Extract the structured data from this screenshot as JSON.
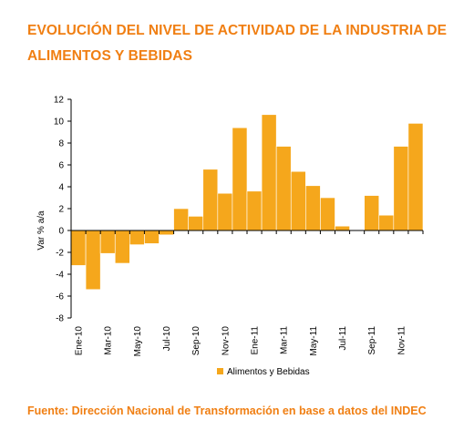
{
  "header": {
    "title": "EVOLUCIÓN DEL NIVEL DE ACTIVIDAD DE LA INDUSTRIA DE ALIMENTOS Y BEBIDAS"
  },
  "footer": {
    "source": "Fuente: Dirección Nacional de Transformación en base a datos del INDEC"
  },
  "colors": {
    "bar": "#f5a71c",
    "title": "#f07f13",
    "axis": "#000000"
  },
  "chart_data": {
    "type": "bar",
    "title": "EVOLUCIÓN DEL NIVEL DE ACTIVIDAD DE LA INDUSTRIA DE ALIMENTOS Y BEBIDAS",
    "xlabel": "",
    "ylabel": "Var % a/a",
    "ylim": [
      -8,
      12
    ],
    "yticks": [
      -8,
      -6,
      -4,
      -2,
      0,
      2,
      4,
      6,
      8,
      10,
      12
    ],
    "grid": false,
    "legend": "bottom",
    "categories": [
      "Ene-10",
      "Feb-10",
      "Mar-10",
      "Abr-10",
      "May-10",
      "Jun-10",
      "Jul-10",
      "Ago-10",
      "Sep-10",
      "Oct-10",
      "Nov-10",
      "Dic-10",
      "Ene-11",
      "Feb-11",
      "Mar-11",
      "Abr-11",
      "May-11",
      "Jun-11",
      "Jul-11",
      "Ago-11",
      "Sep-11",
      "Oct-11",
      "Nov-11",
      "Dic-11"
    ],
    "tick_labels": [
      "Ene-10",
      "Mar-10",
      "May-10",
      "Jul-10",
      "Sep-10",
      "Nov-10",
      "Ene-11",
      "Mar-11",
      "May-11",
      "Jul-11",
      "Sep-11",
      "Nov-11"
    ],
    "series": [
      {
        "name": "Alimentos y Bebidas",
        "values": [
          -3.2,
          -5.4,
          -2.1,
          -3.0,
          -1.3,
          -1.2,
          -0.4,
          2.0,
          1.3,
          5.6,
          3.4,
          9.4,
          3.6,
          10.6,
          7.7,
          5.4,
          4.1,
          3.0,
          0.4,
          0.0,
          3.2,
          1.4,
          7.7,
          9.8
        ]
      }
    ]
  }
}
